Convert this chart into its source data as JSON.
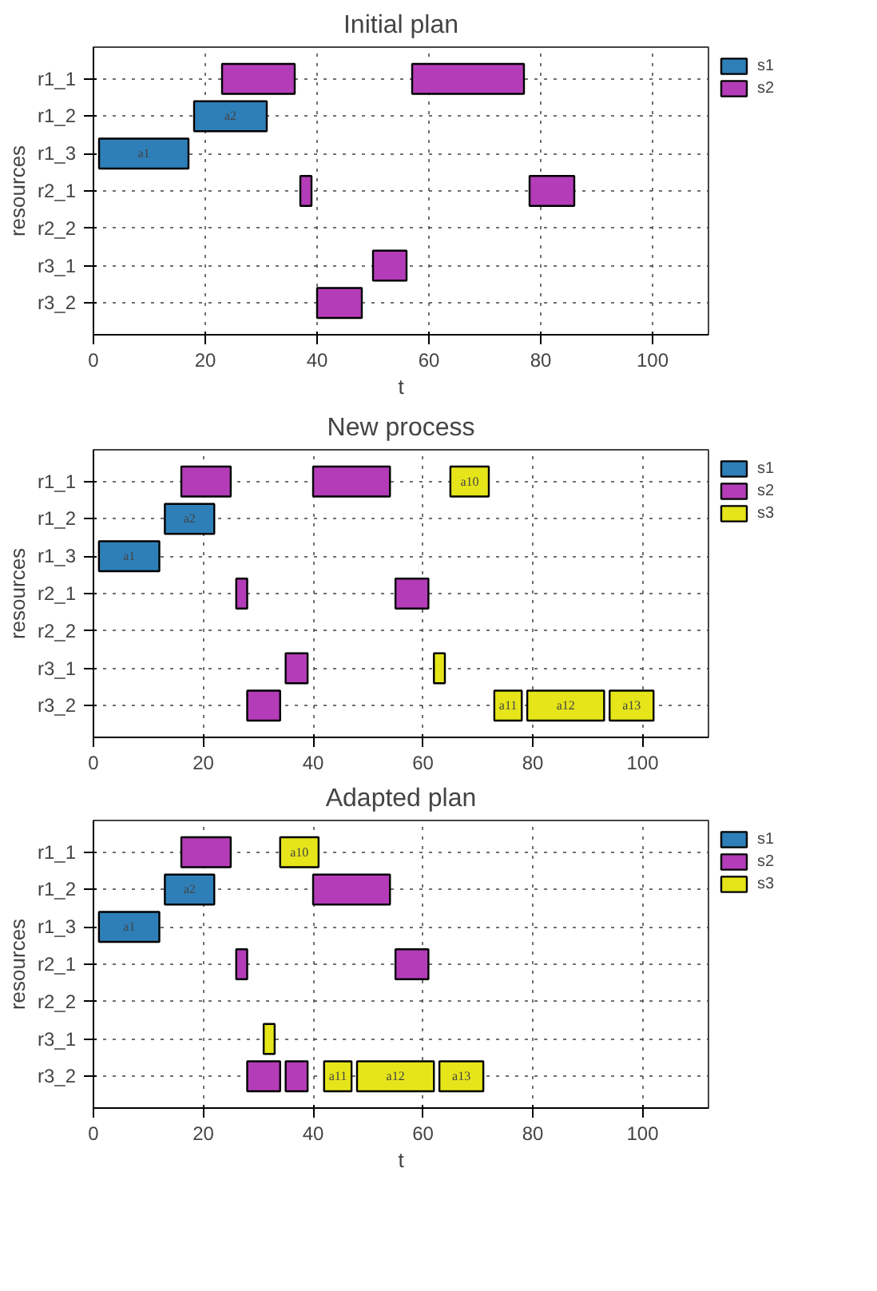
{
  "chart_data": [
    {
      "type": "bar",
      "orientation": "horizontal",
      "title": "Initial plan",
      "xlabel": "t",
      "ylabel": "resources",
      "categories": [
        "r1_1",
        "r1_2",
        "r1_3",
        "r2_1",
        "r2_2",
        "r3_1",
        "r3_2"
      ],
      "xlim": [
        0,
        110
      ],
      "xticks": [
        0,
        20,
        40,
        60,
        80,
        100
      ],
      "grid": true,
      "legend": "top right",
      "line_style": "dotted",
      "series": [
        {
          "name": "s1",
          "color": "#2e7fb8",
          "base": [
            null,
            18,
            1,
            null,
            null,
            null,
            null
          ],
          "values": [
            null,
            13,
            16,
            null,
            null,
            null,
            null
          ],
          "value_labels": [
            null,
            "a2",
            "a1",
            null,
            null,
            null,
            null
          ]
        },
        {
          "name": "s2",
          "color": "#b43cb8",
          "base": [
            23,
            null,
            null,
            37,
            null,
            50,
            40
          ],
          "values": [
            13,
            null,
            null,
            2,
            null,
            6,
            8
          ]
        },
        {
          "color": "#b43cb8",
          "base": [
            57,
            null,
            null,
            78,
            null,
            null,
            null
          ],
          "values": [
            20,
            null,
            null,
            8,
            null,
            null,
            null
          ]
        }
      ]
    },
    {
      "type": "bar",
      "orientation": "horizontal",
      "title": "New process",
      "ylabel": "resources",
      "categories": [
        "r1_1",
        "r1_2",
        "r1_3",
        "r2_1",
        "r2_2",
        "r3_1",
        "r3_2"
      ],
      "xlim": [
        0,
        112
      ],
      "xticks": [
        0,
        20,
        40,
        60,
        80,
        100
      ],
      "grid": true,
      "legend": "top right",
      "line_style": "dotted",
      "series": [
        {
          "name": "s1",
          "color": "#2e7fb8",
          "base": [
            null,
            13,
            1,
            null,
            null,
            null,
            null
          ],
          "values": [
            null,
            9,
            11,
            null,
            null,
            null,
            null
          ],
          "value_labels": [
            null,
            "a2",
            "a1",
            null,
            null,
            null,
            null
          ]
        },
        {
          "name": "s2",
          "color": "#b43cb8",
          "base": [
            16,
            null,
            null,
            26,
            null,
            35,
            28
          ],
          "values": [
            9,
            null,
            null,
            2,
            null,
            4,
            6
          ]
        },
        {
          "color": "#b43cb8",
          "base": [
            40,
            null,
            null,
            55,
            null,
            null,
            null
          ],
          "values": [
            14,
            null,
            null,
            6,
            null,
            null,
            null
          ]
        },
        {
          "name": "s3",
          "color": "#e5e51a",
          "base": [
            65,
            null,
            null,
            null,
            null,
            62,
            73
          ],
          "values": [
            7,
            null,
            null,
            null,
            null,
            2,
            5
          ],
          "value_labels": [
            "a10",
            null,
            null,
            null,
            null,
            null,
            "a11"
          ]
        },
        {
          "color": "#e5e51a",
          "base": [
            null,
            null,
            null,
            null,
            null,
            null,
            79
          ],
          "values": [
            null,
            null,
            null,
            null,
            null,
            null,
            14
          ],
          "value_labels": [
            null,
            null,
            null,
            null,
            null,
            null,
            "a12"
          ]
        },
        {
          "color": "#e5e51a",
          "base": [
            null,
            null,
            null,
            null,
            null,
            null,
            94
          ],
          "values": [
            null,
            null,
            null,
            null,
            null,
            null,
            8
          ],
          "value_labels": [
            null,
            null,
            null,
            null,
            null,
            null,
            "a13"
          ]
        }
      ]
    },
    {
      "type": "bar",
      "orientation": "horizontal",
      "title": "Adapted plan",
      "xlabel": "t",
      "ylabel": "resources",
      "categories": [
        "r1_1",
        "r1_2",
        "r1_3",
        "r2_1",
        "r2_2",
        "r3_1",
        "r3_2"
      ],
      "xlim": [
        0,
        112
      ],
      "xticks": [
        0,
        20,
        40,
        60,
        80,
        100
      ],
      "grid": true,
      "legend": "top right",
      "line_style": "dotted",
      "series": [
        {
          "name": "s1",
          "color": "#2e7fb8",
          "base": [
            null,
            13,
            1,
            null,
            null,
            null,
            null
          ],
          "values": [
            null,
            9,
            11,
            null,
            null,
            null,
            null
          ],
          "value_labels": [
            null,
            "a2",
            "a1",
            null,
            null,
            null,
            null
          ]
        },
        {
          "name": "s2",
          "color": "#b43cb8",
          "base": [
            16,
            40,
            null,
            26,
            null,
            null,
            28
          ],
          "values": [
            9,
            14,
            null,
            2,
            null,
            null,
            6
          ]
        },
        {
          "color": "#b43cb8",
          "base": [
            null,
            null,
            null,
            55,
            null,
            null,
            35
          ],
          "values": [
            null,
            null,
            null,
            6,
            null,
            null,
            4
          ]
        },
        {
          "name": "s3",
          "color": "#e5e51a",
          "base": [
            34,
            null,
            null,
            null,
            null,
            31,
            42
          ],
          "values": [
            7,
            null,
            null,
            null,
            null,
            2,
            5
          ],
          "value_labels": [
            "a10",
            null,
            null,
            null,
            null,
            null,
            "a11"
          ]
        },
        {
          "color": "#e5e51a",
          "base": [
            null,
            null,
            null,
            null,
            null,
            null,
            48
          ],
          "values": [
            null,
            null,
            null,
            null,
            null,
            null,
            14
          ],
          "value_labels": [
            null,
            null,
            null,
            null,
            null,
            null,
            "a12"
          ]
        },
        {
          "color": "#e5e51a",
          "base": [
            null,
            null,
            null,
            null,
            null,
            null,
            63
          ],
          "values": [
            null,
            null,
            null,
            null,
            null,
            null,
            8
          ],
          "value_labels": [
            null,
            null,
            null,
            null,
            null,
            null,
            "a13"
          ]
        }
      ]
    }
  ]
}
